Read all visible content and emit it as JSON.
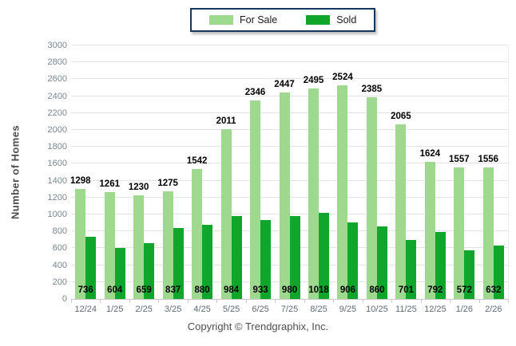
{
  "chart_data": {
    "type": "bar",
    "title": "",
    "categories": [
      "12/24",
      "1/25",
      "2/25",
      "3/25",
      "4/25",
      "5/25",
      "6/25",
      "7/25",
      "8/25",
      "9/25",
      "10/25",
      "11/25",
      "12/25",
      "1/26",
      "2/26"
    ],
    "series": [
      {
        "name": "For Sale",
        "color": "#9fd98f",
        "values": [
          1298,
          1261,
          1230,
          1275,
          1542,
          2011,
          2346,
          2447,
          2495,
          2524,
          2385,
          2065,
          1624,
          1557,
          1556
        ],
        "label_position": "above-bar"
      },
      {
        "name": "Sold",
        "color": "#10a62c",
        "values": [
          736,
          604,
          659,
          837,
          880,
          984,
          933,
          980,
          1018,
          906,
          860,
          701,
          792,
          572,
          632
        ],
        "label_position": "inside-bottom"
      }
    ],
    "xlabel": "",
    "ylabel": "Number of Homes",
    "ylim": [
      0,
      3000
    ],
    "ytick_step": 200,
    "grid": true,
    "legend_position": "top-center"
  },
  "footer": {
    "copyright": "Copyright © Trendgraphix, Inc."
  },
  "colors": {
    "for_sale_green": "#9fd98f",
    "sold_green": "#10a62c",
    "legend_border": "#17365d",
    "gridline": "#e4e4e4",
    "axis_line": "#c9c9c9",
    "x_tick_label": "#5d6c7b",
    "y_tick_label": "#7b8691",
    "bar_value_label": "#000000",
    "y_axis_title": "#4c4c4c"
  }
}
